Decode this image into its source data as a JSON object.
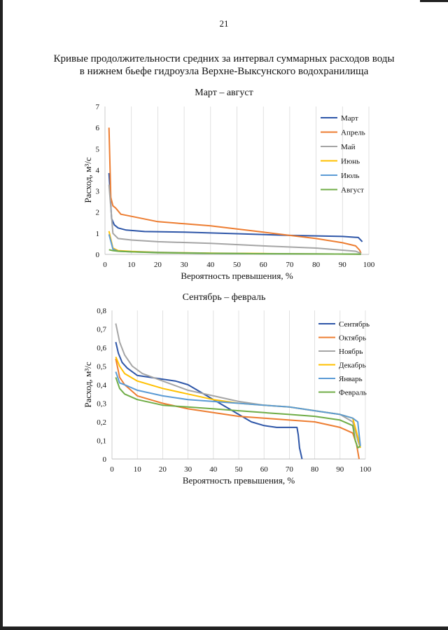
{
  "page_number": "21",
  "title_lines": [
    "Кривые продолжительности средних за интервал суммарных расходов воды",
    "в нижнем бьефе гидроузла Верхне-Выксунского водохранилища"
  ],
  "chart_data": [
    {
      "type": "line",
      "title": "Март – август",
      "xlabel": "Вероятность превышения, %",
      "ylabel": "Расход, м³/с",
      "xlim": [
        0,
        100
      ],
      "ylim": [
        0,
        7
      ],
      "xticks": [
        0,
        10,
        20,
        30,
        40,
        50,
        60,
        70,
        80,
        90,
        100
      ],
      "yticks": [
        0,
        1,
        2,
        3,
        4,
        5,
        6,
        7
      ],
      "xtick_labels": [
        "0",
        "10",
        "20",
        "30",
        "40",
        "50",
        "60",
        "70",
        "80",
        "90",
        "100"
      ],
      "ytick_labels": [
        "0",
        "1",
        "2",
        "3",
        "4",
        "5",
        "6",
        "7"
      ],
      "grid": true,
      "legend_position": "top-right",
      "series": [
        {
          "name": "Март",
          "color": "#2E56A8",
          "x": [
            1.5,
            2.5,
            3.5,
            5,
            8,
            15,
            30,
            50,
            70,
            90,
            96,
            97.5
          ],
          "y": [
            3.85,
            1.7,
            1.4,
            1.25,
            1.15,
            1.08,
            1.05,
            0.98,
            0.9,
            0.85,
            0.8,
            0.6
          ]
        },
        {
          "name": "Апрель",
          "color": "#ED7D31",
          "x": [
            1.5,
            2.2,
            3,
            4,
            6,
            10,
            20,
            30,
            40,
            50,
            60,
            70,
            80,
            90,
            95,
            96.5,
            97
          ],
          "y": [
            6.0,
            2.7,
            2.3,
            2.2,
            1.9,
            1.8,
            1.55,
            1.45,
            1.35,
            1.2,
            1.05,
            0.9,
            0.75,
            0.55,
            0.4,
            0.2,
            0.05
          ]
        },
        {
          "name": "Май",
          "color": "#A5A5A5",
          "x": [
            1.5,
            3,
            5,
            10,
            20,
            40,
            60,
            80,
            95,
            97
          ],
          "y": [
            3.3,
            1.0,
            0.75,
            0.68,
            0.6,
            0.52,
            0.4,
            0.3,
            0.15,
            0.05
          ]
        },
        {
          "name": "Июнь",
          "color": "#FFC000",
          "x": [
            1.5,
            3,
            5,
            10,
            20,
            40,
            60,
            80,
            97
          ],
          "y": [
            1.1,
            0.3,
            0.18,
            0.14,
            0.1,
            0.06,
            0.04,
            0.02,
            0.01
          ]
        },
        {
          "name": "Июль",
          "color": "#5B9BD5",
          "x": [
            1.5,
            3,
            5,
            10,
            20,
            40,
            60,
            80,
            97
          ],
          "y": [
            0.95,
            0.25,
            0.15,
            0.12,
            0.09,
            0.05,
            0.03,
            0.02,
            0.01
          ]
        },
        {
          "name": "Август",
          "color": "#70AD47",
          "x": [
            1.5,
            3,
            5,
            10,
            20,
            40,
            60,
            80,
            97
          ],
          "y": [
            0.22,
            0.18,
            0.15,
            0.12,
            0.08,
            0.05,
            0.03,
            0.02,
            0.01
          ]
        }
      ]
    },
    {
      "type": "line",
      "title": "Сентябрь – февраль",
      "xlabel": "Вероятность превышения, %",
      "ylabel": "Расход, м³/с",
      "xlim": [
        0,
        100
      ],
      "ylim": [
        0,
        0.8
      ],
      "xticks": [
        0,
        10,
        20,
        30,
        40,
        50,
        60,
        70,
        80,
        90,
        100
      ],
      "yticks": [
        0,
        0.1,
        0.2,
        0.3,
        0.4,
        0.5,
        0.6,
        0.7,
        0.8
      ],
      "xtick_labels": [
        "0",
        "10",
        "20",
        "30",
        "40",
        "50",
        "60",
        "70",
        "80",
        "90",
        "100"
      ],
      "ytick_labels": [
        "0",
        "0,1",
        "0,2",
        "0,3",
        "0,4",
        "0,5",
        "0,6",
        "0,7",
        "0,8"
      ],
      "grid": true,
      "legend_position": "top-right",
      "series": [
        {
          "name": "Сентябрь",
          "color": "#2E56A8",
          "x": [
            1.5,
            2.5,
            4,
            6,
            10,
            15,
            20,
            25,
            30,
            35,
            40,
            45,
            50,
            55,
            60,
            65,
            70,
            73,
            73.5,
            74,
            75
          ],
          "y": [
            0.63,
            0.57,
            0.52,
            0.49,
            0.45,
            0.44,
            0.43,
            0.42,
            0.4,
            0.36,
            0.32,
            0.28,
            0.24,
            0.2,
            0.18,
            0.17,
            0.17,
            0.17,
            0.13,
            0.06,
            0.0
          ]
        },
        {
          "name": "Октябрь",
          "color": "#ED7D31",
          "x": [
            1.5,
            3,
            5,
            10,
            15,
            20,
            30,
            40,
            50,
            60,
            70,
            80,
            90,
            95,
            96.5,
            97.5
          ],
          "y": [
            0.54,
            0.44,
            0.4,
            0.34,
            0.32,
            0.3,
            0.27,
            0.25,
            0.23,
            0.22,
            0.21,
            0.2,
            0.17,
            0.14,
            0.08,
            0.0
          ]
        },
        {
          "name": "Ноябрь",
          "color": "#A5A5A5",
          "x": [
            1.5,
            3,
            5,
            8,
            12,
            20,
            30,
            40,
            50,
            60,
            70,
            80,
            90,
            95,
            97,
            98
          ],
          "y": [
            0.73,
            0.63,
            0.56,
            0.5,
            0.46,
            0.42,
            0.37,
            0.34,
            0.31,
            0.29,
            0.28,
            0.26,
            0.24,
            0.2,
            0.1,
            0.06
          ]
        },
        {
          "name": "Декабрь",
          "color": "#FFC000",
          "x": [
            1.5,
            3,
            5,
            10,
            20,
            30,
            40,
            50,
            60,
            70,
            80,
            90,
            95,
            97,
            98
          ],
          "y": [
            0.55,
            0.5,
            0.46,
            0.42,
            0.38,
            0.35,
            0.32,
            0.3,
            0.29,
            0.28,
            0.26,
            0.24,
            0.22,
            0.12,
            0.06
          ]
        },
        {
          "name": "Январь",
          "color": "#5B9BD5",
          "x": [
            1.5,
            3,
            5,
            10,
            20,
            30,
            40,
            50,
            60,
            70,
            80,
            90,
            95,
            97,
            98
          ],
          "y": [
            0.47,
            0.41,
            0.4,
            0.37,
            0.34,
            0.32,
            0.31,
            0.3,
            0.29,
            0.28,
            0.26,
            0.24,
            0.22,
            0.2,
            0.07
          ]
        },
        {
          "name": "Февраль",
          "color": "#70AD47",
          "x": [
            1.5,
            3,
            5,
            10,
            20,
            30,
            40,
            50,
            60,
            70,
            80,
            90,
            95,
            96,
            97,
            98
          ],
          "y": [
            0.44,
            0.38,
            0.35,
            0.32,
            0.29,
            0.28,
            0.27,
            0.26,
            0.25,
            0.24,
            0.23,
            0.21,
            0.18,
            0.1,
            0.06,
            0.07
          ]
        }
      ]
    }
  ]
}
